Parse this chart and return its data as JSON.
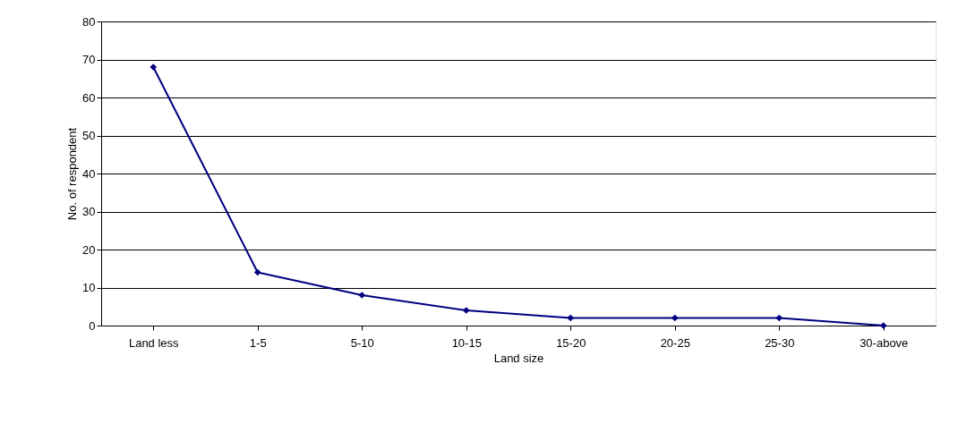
{
  "chart_data": {
    "type": "line",
    "xlabel": "Land size",
    "ylabel": "No. of respondent",
    "categories": [
      "Land less",
      "1-5",
      "5-10",
      "10-15",
      "15-20",
      "20-25",
      "25-30",
      "30-above"
    ],
    "series": [
      {
        "color": "#000080",
        "values": [
          68,
          14,
          8,
          4,
          2,
          2,
          2,
          0
        ]
      }
    ],
    "ylim": [
      0,
      80
    ],
    "yticks": [
      0,
      10,
      20,
      30,
      40,
      50,
      60,
      70,
      80
    ],
    "grid": "y",
    "marker": "diamond",
    "line_style": "solid"
  }
}
